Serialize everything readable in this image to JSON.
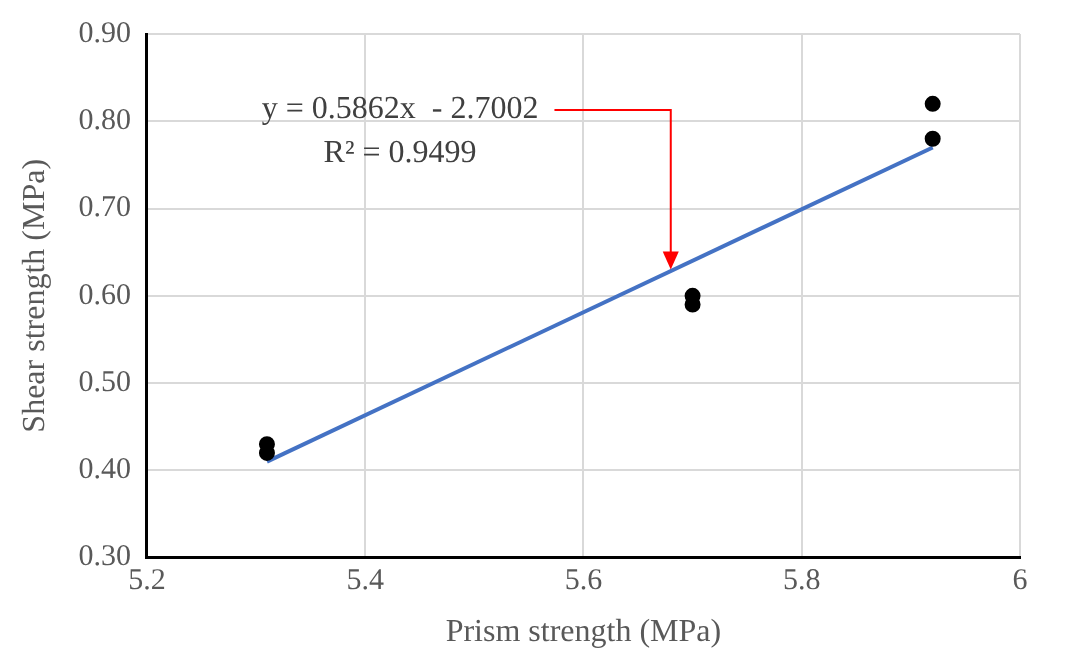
{
  "chart_data": {
    "type": "scatter",
    "xlabel": "Prism strength (MPa)",
    "ylabel": "Shear strength (MPa)",
    "series": [
      {
        "color": "#000000",
        "x": [
          5.31,
          5.31,
          5.7,
          5.7,
          5.92,
          5.92
        ],
        "values": [
          0.43,
          0.42,
          0.6,
          0.59,
          0.82,
          0.78
        ]
      },
      {
        "type": "line",
        "marker": "none",
        "color": "#4472c4",
        "x": [
          5.31,
          5.92
        ],
        "values": [
          0.41,
          0.77
        ]
      }
    ],
    "annotations": [
      {
        "text": "y = 0.5862x  - 2.7002\nR² = 0.9499",
        "x": 5.68,
        "y": 0.63
      }
    ],
    "xlim": [
      5.2,
      6
    ],
    "xticks": [
      5.2,
      5.4,
      5.6,
      5.8,
      6
    ],
    "ylim": [
      0.3,
      0.9
    ],
    "yticks": [
      {
        "value": 0.3,
        "label": "0.30"
      },
      {
        "value": 0.4,
        "label": "0.40"
      },
      {
        "value": 0.5,
        "label": "0.50"
      },
      {
        "value": 0.6,
        "label": "0.60"
      },
      {
        "value": 0.7,
        "label": "0.70"
      },
      {
        "value": 0.8,
        "label": "0.80"
      },
      {
        "value": 0.9,
        "label": "0.90"
      }
    ],
    "grid": true,
    "legend": false,
    "marker": "circle",
    "line_style": "solid"
  }
}
